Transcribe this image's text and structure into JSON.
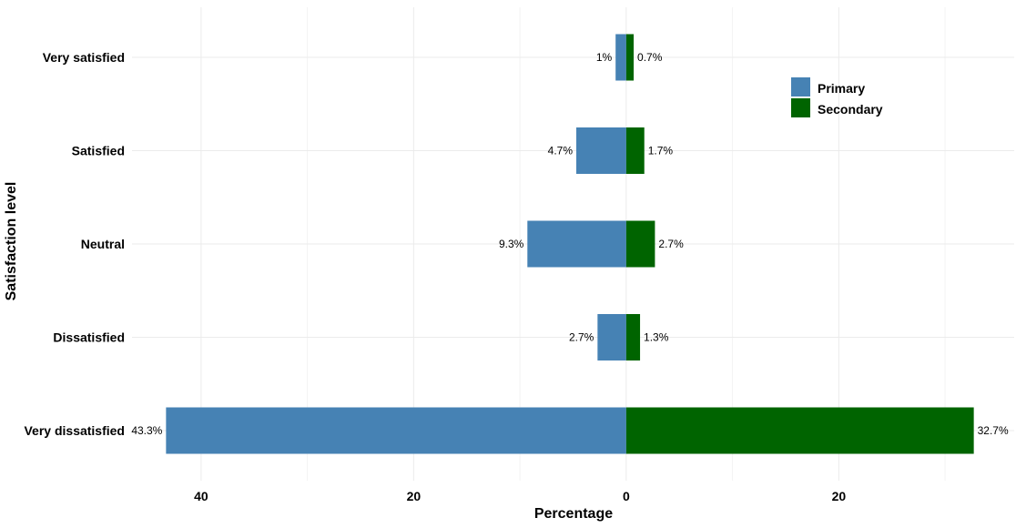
{
  "chart_data": {
    "type": "bar",
    "orientation": "horizontal",
    "layout": "diverging",
    "categories": [
      "Very satisfied",
      "Satisfied",
      "Neutral",
      "Dissatisfied",
      "Very dissatisfied"
    ],
    "series": [
      {
        "name": "Primary",
        "direction": "left",
        "color": "#4682b4",
        "values": [
          1.0,
          4.7,
          9.3,
          2.7,
          43.3
        ],
        "labels": [
          "1%",
          "4.7%",
          "9.3%",
          "2.7%",
          "43.3%"
        ]
      },
      {
        "name": "Secondary",
        "direction": "right",
        "color": "#006400",
        "values": [
          0.7,
          1.7,
          2.7,
          1.3,
          32.7
        ],
        "labels": [
          "0.7%",
          "1.7%",
          "2.7%",
          "1.3%",
          "32.7%"
        ]
      }
    ],
    "xlabel": "Percentage",
    "ylabel": "Satisfaction level",
    "xlim": [
      -46.5,
      36.5
    ],
    "x_ticks": [
      -40,
      -20,
      0,
      20
    ],
    "x_tick_labels": [
      "40",
      "20",
      "0",
      "20"
    ],
    "x_minor_ticks": [
      -30,
      -10,
      10,
      30
    ],
    "grid": true,
    "legend_position": "top-right"
  }
}
